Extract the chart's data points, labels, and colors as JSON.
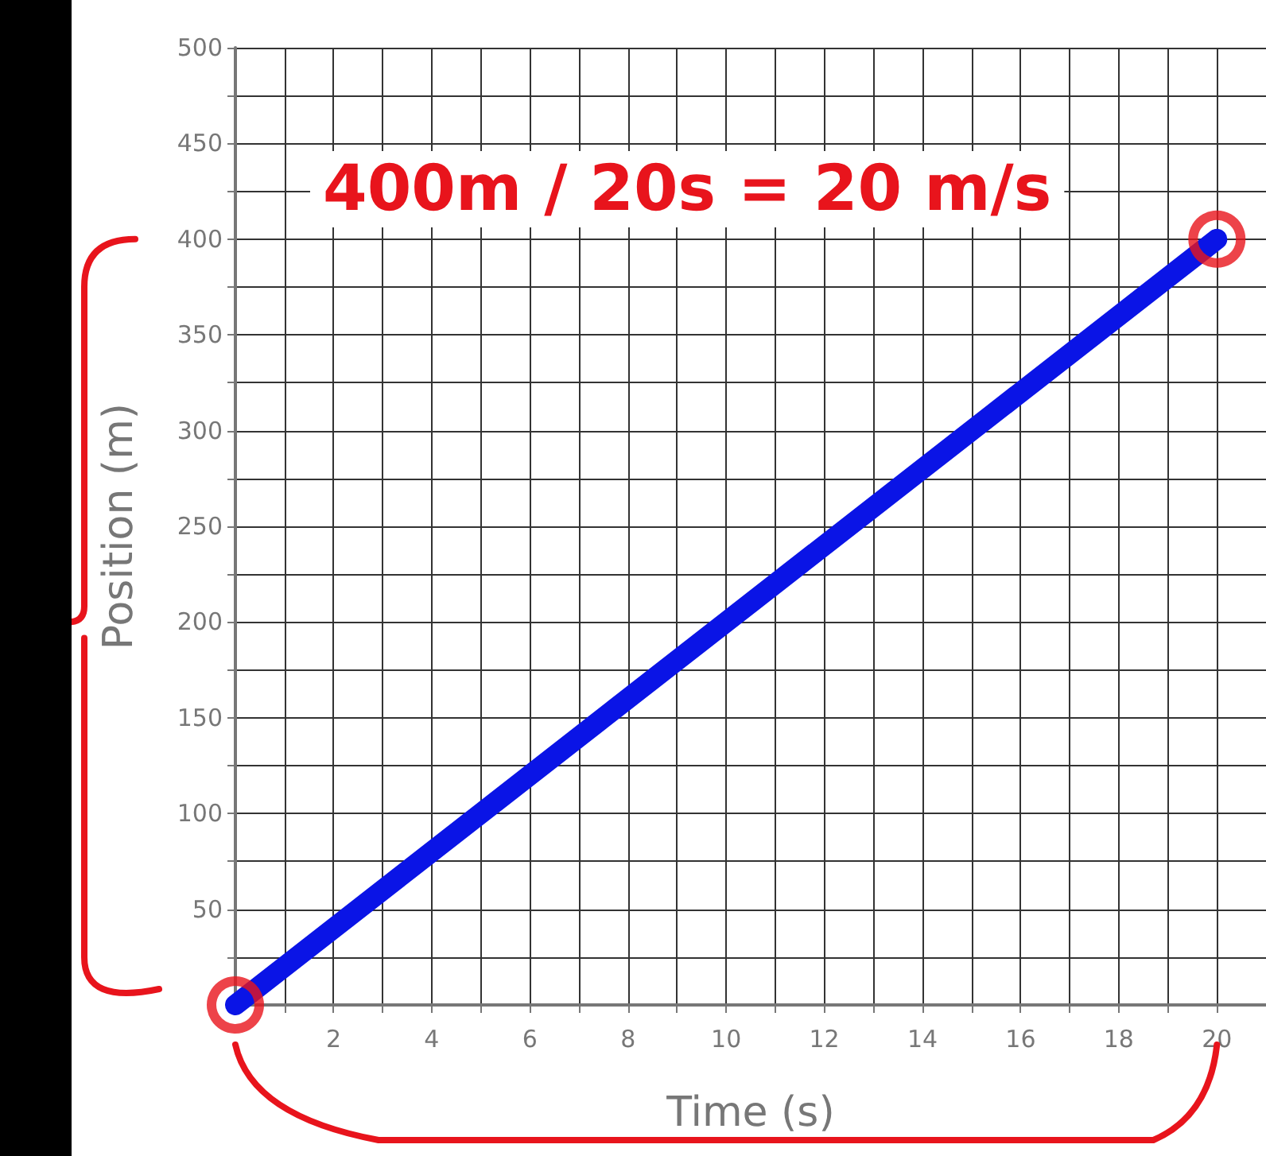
{
  "chart_data": {
    "type": "line",
    "xlabel": "Time (s)",
    "ylabel": "Position (m)",
    "annotations": [
      "400m / 20s = 20 m/s"
    ],
    "x": [
      0,
      20
    ],
    "series": [
      {
        "color": "#0a14e6",
        "values": [
          0,
          400
        ],
        "marker": "none"
      },
      {
        "type": "scatter",
        "color": "#e8141c",
        "values": [
          0,
          400
        ],
        "marker": "circle"
      }
    ],
    "xlim": [
      0,
      21
    ],
    "xticks": [
      {
        "value": 1,
        "label": null
      },
      2,
      {
        "value": 3,
        "label": null
      },
      4,
      {
        "value": 5,
        "label": null
      },
      6,
      {
        "value": 7,
        "label": null
      },
      8,
      {
        "value": 9,
        "label": null
      },
      10,
      {
        "value": 11,
        "label": null
      },
      12,
      {
        "value": 13,
        "label": null
      },
      14,
      {
        "value": 15,
        "label": null
      },
      16,
      {
        "value": 17,
        "label": null
      },
      18,
      {
        "value": 19,
        "label": null
      },
      20
    ],
    "ylim": [
      0,
      500
    ],
    "yticks": [
      {
        "value": 25,
        "label": null
      },
      50,
      {
        "value": 75,
        "label": null
      },
      100,
      {
        "value": 125,
        "label": null
      },
      150,
      {
        "value": 175,
        "label": null
      },
      200,
      {
        "value": 225,
        "label": null
      },
      250,
      {
        "value": 275,
        "label": null
      },
      300,
      {
        "value": 325,
        "label": null
      },
      350,
      {
        "value": 375,
        "label": null
      },
      400,
      {
        "value": 425,
        "label": null
      },
      450,
      {
        "value": 475,
        "label": null
      },
      500
    ],
    "grid": true,
    "line_style": "solid"
  }
}
